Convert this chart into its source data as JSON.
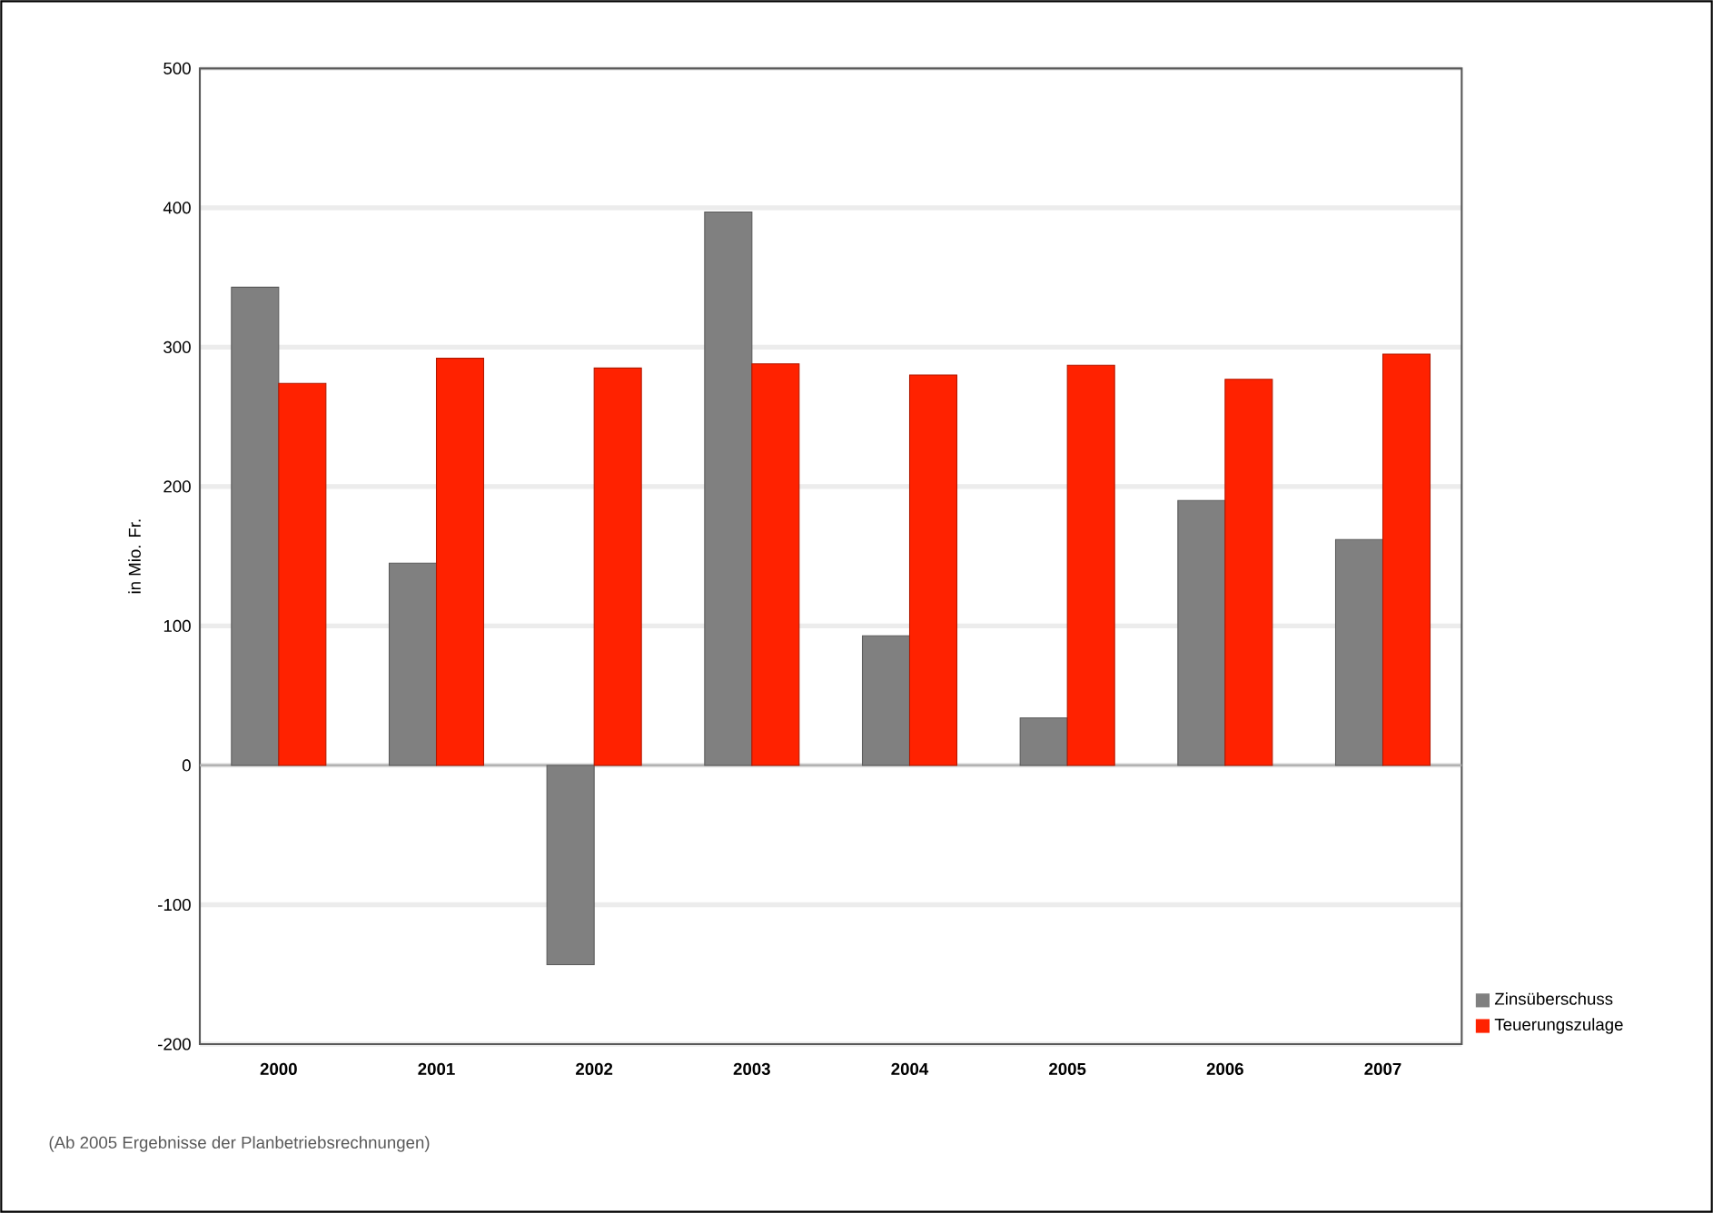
{
  "chart_data": {
    "type": "bar",
    "ylabel": "in Mio. Fr.",
    "categories": [
      "2000",
      "2001",
      "2002",
      "2003",
      "2004",
      "2005",
      "2006",
      "2007"
    ],
    "series": [
      {
        "name": "Zinsüberschuss",
        "color": "#808080",
        "values": [
          343,
          145,
          -143,
          397,
          93,
          34,
          190,
          162
        ]
      },
      {
        "name": "Teuerungszulage",
        "color": "#ff2200",
        "values": [
          274,
          292,
          285,
          288,
          280,
          287,
          277,
          295
        ]
      }
    ],
    "ylim": [
      -200,
      500
    ],
    "yticks": [
      -200,
      -100,
      0,
      100,
      200,
      300,
      400,
      500
    ],
    "grid": "y",
    "legend": "right",
    "annotations": [
      "(Ab 2005 Ergebnisse der Planbetriebsrechnungen)"
    ]
  }
}
